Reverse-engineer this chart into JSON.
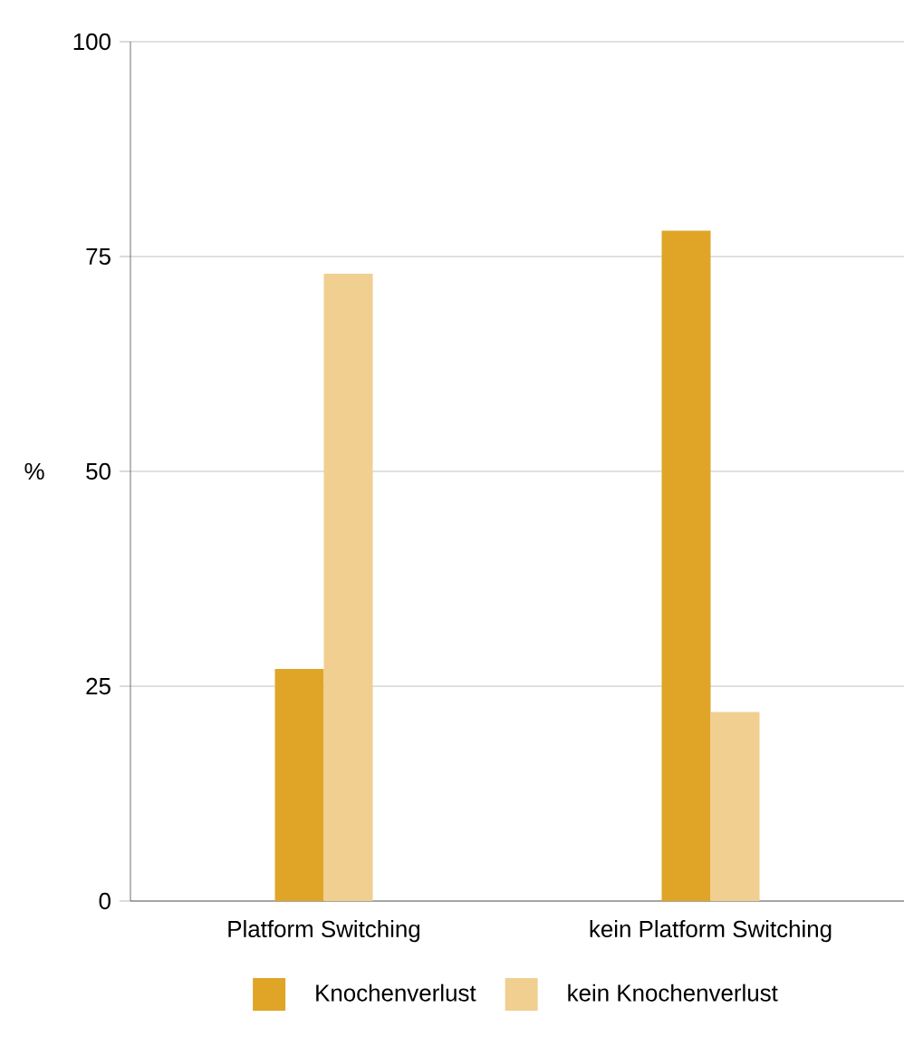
{
  "chart_data": {
    "type": "bar",
    "ylabel": "%",
    "categories": [
      "Platform Switching",
      "kein Platform Switching"
    ],
    "series": [
      {
        "name": "Knochenverlust",
        "color": "#e0a526",
        "values": [
          27,
          78
        ]
      },
      {
        "name": "kein Knochenverlust",
        "color": "#f0cf90",
        "values": [
          73,
          22
        ]
      }
    ],
    "ylim": [
      0,
      100
    ],
    "yticks": [
      0,
      25,
      50,
      75,
      100
    ],
    "grid": "y",
    "legend": "bottom"
  }
}
